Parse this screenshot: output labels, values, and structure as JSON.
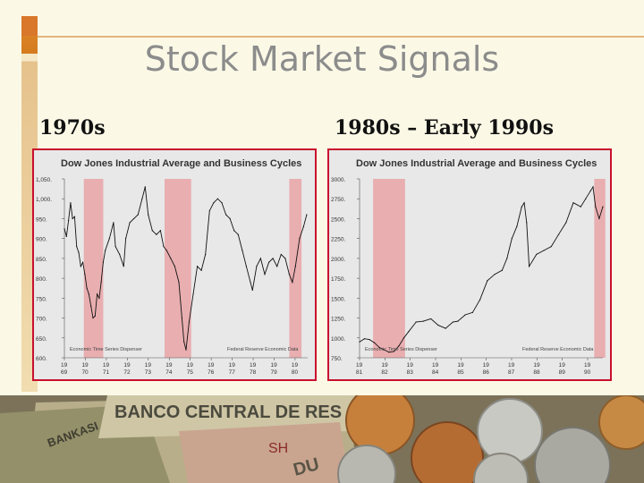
{
  "slide": {
    "title": "Stock Market Signals",
    "left_heading": "1970s",
    "right_heading": "1980s – Early 1990s"
  },
  "colors": {
    "frame": "#c8102e",
    "recession": "#e9aeb0",
    "line": "#111111",
    "plot_bg": "#e8e8e8"
  },
  "photo": {
    "banknote_text": "BANCO CENTRAL DE RES",
    "note_serial": "SH",
    "banknote_text_2": "BANKASI",
    "banknote_text_3": "DU"
  },
  "chart_data": [
    {
      "type": "line",
      "title": "Dow Jones Industrial Average and Business Cycles",
      "source_left": "Economic Time Series Dispenser",
      "source_right": "Federal Reserve Economic Data",
      "y_ticks": [
        "1,050.",
        "1,000.",
        "950.",
        "900.",
        "850.",
        "800.",
        "750.",
        "700.",
        "650.",
        "600."
      ],
      "ylim": [
        600,
        1050
      ],
      "x_ticks": [
        [
          "19",
          "69"
        ],
        [
          "19",
          "70"
        ],
        [
          "19",
          "71"
        ],
        [
          "19",
          "72"
        ],
        [
          "19",
          "73"
        ],
        [
          "19",
          "74"
        ],
        [
          "19",
          "75"
        ],
        [
          "19",
          "76"
        ],
        [
          "19",
          "77"
        ],
        [
          "19",
          "78"
        ],
        [
          "19",
          "79"
        ],
        [
          "19",
          "80"
        ]
      ],
      "xlim": [
        1969,
        1980.9
      ],
      "recessions": [
        [
          1969.95,
          1970.9
        ],
        [
          1973.9,
          1975.2
        ],
        [
          1980.0,
          1980.6
        ]
      ],
      "x": [
        1969.0,
        1969.1,
        1969.2,
        1969.3,
        1969.4,
        1969.5,
        1969.6,
        1969.7,
        1969.8,
        1969.9,
        1970.0,
        1970.1,
        1970.2,
        1970.3,
        1970.4,
        1970.5,
        1970.6,
        1970.7,
        1970.8,
        1970.9,
        1971.0,
        1971.2,
        1971.4,
        1971.5,
        1971.7,
        1971.9,
        1972.0,
        1972.2,
        1972.4,
        1972.6,
        1972.8,
        1972.95,
        1973.1,
        1973.3,
        1973.5,
        1973.7,
        1973.85,
        1974.0,
        1974.2,
        1974.4,
        1974.6,
        1974.75,
        1974.85,
        1974.95,
        1975.1,
        1975.3,
        1975.5,
        1975.7,
        1975.9,
        1976.1,
        1976.3,
        1976.5,
        1976.7,
        1976.9,
        1977.1,
        1977.3,
        1977.5,
        1977.7,
        1977.9,
        1978.1,
        1978.2,
        1978.4,
        1978.6,
        1978.8,
        1979.0,
        1979.2,
        1979.4,
        1979.6,
        1979.8,
        1980.0,
        1980.15,
        1980.3,
        1980.5,
        1980.7,
        1980.85
      ],
      "values": [
        925,
        905,
        945,
        990,
        950,
        955,
        880,
        865,
        830,
        840,
        810,
        775,
        760,
        730,
        700,
        705,
        760,
        750,
        790,
        840,
        870,
        900,
        940,
        880,
        860,
        830,
        900,
        940,
        950,
        960,
        1000,
        1030,
        960,
        920,
        910,
        920,
        880,
        870,
        850,
        830,
        790,
        700,
        640,
        620,
        690,
        760,
        830,
        820,
        860,
        970,
        990,
        1000,
        990,
        960,
        950,
        920,
        910,
        870,
        830,
        790,
        770,
        830,
        850,
        810,
        840,
        850,
        830,
        860,
        850,
        810,
        790,
        830,
        900,
        930,
        960
      ]
    },
    {
      "type": "line",
      "title": "Dow Jones Industrial Average and Business Cycles",
      "source_left": "Economic Time Series Dispenser",
      "source_right": "Federal Reserve Economic Data",
      "y_ticks": [
        "3000.",
        "2750.",
        "2500.",
        "2250.",
        "2000.",
        "1750.",
        "1500.",
        "1250.",
        "1000.",
        "750."
      ],
      "ylim": [
        750,
        3000
      ],
      "x_ticks": [
        [
          "19",
          "81"
        ],
        [
          "19",
          "82"
        ],
        [
          "19",
          "83"
        ],
        [
          "19",
          "84"
        ],
        [
          "19",
          "85"
        ],
        [
          "19",
          "86"
        ],
        [
          "19",
          "87"
        ],
        [
          "19",
          "88"
        ],
        [
          "19",
          "89"
        ],
        [
          "19",
          "90"
        ]
      ],
      "xlim": [
        1981,
        1990.9
      ],
      "recessions": [
        [
          1981.55,
          1982.85
        ],
        [
          1990.55,
          1991.0
        ]
      ],
      "x": [
        1981.0,
        1981.2,
        1981.4,
        1981.6,
        1981.8,
        1982.0,
        1982.2,
        1982.4,
        1982.6,
        1982.8,
        1983.0,
        1983.3,
        1983.6,
        1983.9,
        1984.2,
        1984.5,
        1984.8,
        1985.0,
        1985.3,
        1985.6,
        1985.9,
        1986.2,
        1986.5,
        1986.8,
        1987.0,
        1987.2,
        1987.4,
        1987.6,
        1987.7,
        1987.8,
        1987.9,
        1988.2,
        1988.5,
        1988.8,
        1989.1,
        1989.4,
        1989.7,
        1990.0,
        1990.2,
        1990.4,
        1990.5,
        1990.6,
        1990.75,
        1990.9
      ],
      "values": [
        950,
        990,
        980,
        940,
        880,
        850,
        820,
        830,
        900,
        1000,
        1080,
        1200,
        1210,
        1240,
        1160,
        1120,
        1200,
        1210,
        1290,
        1320,
        1480,
        1720,
        1800,
        1850,
        2000,
        2250,
        2400,
        2650,
        2700,
        2450,
        1900,
        2050,
        2100,
        2150,
        2300,
        2450,
        2700,
        2650,
        2750,
        2850,
        2900,
        2650,
        2500,
        2650
      ]
    }
  ]
}
